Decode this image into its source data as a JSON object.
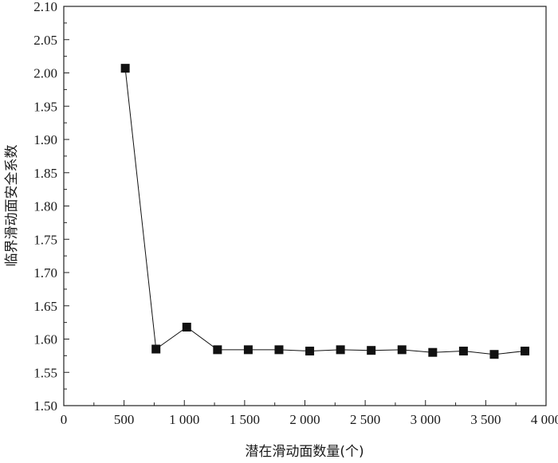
{
  "chart_data": {
    "type": "line",
    "title": "",
    "xlabel": "潜在滑动面数量(个)",
    "ylabel": "临界滑动面安全系数",
    "xlim": [
      0,
      4000
    ],
    "ylim": [
      1.5,
      2.1
    ],
    "xticks": [
      0,
      500,
      1000,
      1500,
      2000,
      2500,
      3000,
      3500,
      4000
    ],
    "xtick_labels": [
      "0",
      "500",
      "1 000",
      "1 500",
      "2 000",
      "2 500",
      "3 000",
      "3 500",
      "4 000"
    ],
    "yticks": [
      1.5,
      1.55,
      1.6,
      1.65,
      1.7,
      1.75,
      1.8,
      1.85,
      1.9,
      1.95,
      2.0,
      2.05,
      2.1
    ],
    "ytick_labels": [
      "1.50",
      "1.55",
      "1.60",
      "1.65",
      "1.70",
      "1.75",
      "1.80",
      "1.85",
      "1.90",
      "1.95",
      "2.00",
      "2.05",
      "2.10"
    ],
    "grid": false,
    "legend": "none",
    "marker": "square",
    "series": [
      {
        "color": "#111111",
        "x": [
          510,
          765,
          1020,
          1275,
          1530,
          1785,
          2040,
          2295,
          2550,
          2805,
          3060,
          3315,
          3570,
          3825
        ],
        "values": [
          2.007,
          1.585,
          1.618,
          1.584,
          1.584,
          1.584,
          1.582,
          1.584,
          1.583,
          1.584,
          1.58,
          1.582,
          1.577,
          1.582
        ]
      }
    ]
  }
}
